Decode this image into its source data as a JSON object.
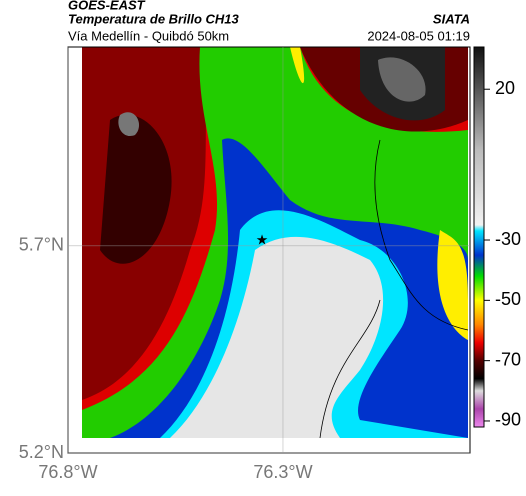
{
  "header": {
    "source": "GOES-EAST",
    "title": "Temperatura de Brillo CH13",
    "subtitle": "Vía Medellín - Quibdó 50km",
    "org": "SIATA",
    "datetime": "2024-08-05 01:19"
  },
  "map": {
    "lon_range": [
      -76.8,
      -75.865
    ],
    "lat_range": [
      5.2,
      6.18
    ],
    "lat_ticks": [
      {
        "value": 5.2,
        "label": "5.2°N"
      },
      {
        "value": 5.7,
        "label": "5.7°N"
      }
    ],
    "lon_ticks": [
      {
        "value": -76.8,
        "label": "76.8°W"
      },
      {
        "value": -76.3,
        "label": "76.3°W"
      }
    ]
  },
  "colorbar": {
    "lim": [
      -92,
      34
    ],
    "ticks": [
      20,
      -30,
      -50,
      -70,
      -90
    ],
    "stops": [
      {
        "value": 34,
        "color": "#111111"
      },
      {
        "value": 20,
        "color": "#555555"
      },
      {
        "value": 0,
        "color": "#bbbbbb"
      },
      {
        "value": -25,
        "color": "#f2f2f2"
      },
      {
        "value": -27,
        "color": "#00e5ff"
      },
      {
        "value": -35,
        "color": "#0033cc"
      },
      {
        "value": -42,
        "color": "#00dd00"
      },
      {
        "value": -50,
        "color": "#ffff00"
      },
      {
        "value": -58,
        "color": "#ff8800"
      },
      {
        "value": -64,
        "color": "#ee0000"
      },
      {
        "value": -70,
        "color": "#550000"
      },
      {
        "value": -76,
        "color": "#000000"
      },
      {
        "value": -80,
        "color": "#dddddd"
      },
      {
        "value": -86,
        "color": "#aa44aa"
      },
      {
        "value": -92,
        "color": "#ee88ee"
      }
    ]
  }
}
